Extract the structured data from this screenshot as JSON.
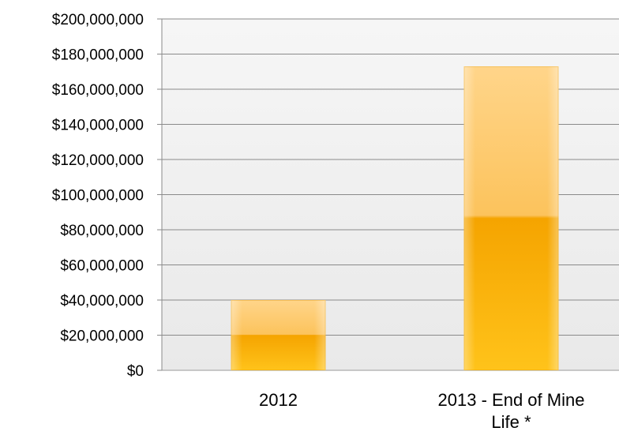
{
  "chart_data": {
    "type": "bar",
    "title": "",
    "xlabel": "",
    "ylabel": "",
    "categories": [
      [
        "2012"
      ],
      [
        "2013 - End of Mine",
        "Life *"
      ]
    ],
    "values": [
      40000000,
      173000000
    ],
    "ylim": [
      0,
      200000000
    ],
    "y_ticks": [
      {
        "value": 0,
        "label": "$0"
      },
      {
        "value": 20000000,
        "label": "$20,000,000"
      },
      {
        "value": 40000000,
        "label": "$40,000,000"
      },
      {
        "value": 60000000,
        "label": "$60,000,000"
      },
      {
        "value": 80000000,
        "label": "$80,000,000"
      },
      {
        "value": 100000000,
        "label": "$100,000,000"
      },
      {
        "value": 120000000,
        "label": "$120,000,000"
      },
      {
        "value": 140000000,
        "label": "$140,000,000"
      },
      {
        "value": 160000000,
        "label": "$160,000,000"
      },
      {
        "value": 180000000,
        "label": "$180,000,000"
      },
      {
        "value": 200000000,
        "label": "$200,000,000"
      }
    ],
    "grid": true,
    "colors": {
      "bar_light": "#ffd58a",
      "bar_dark": "#f6a800",
      "plot_background": "#f2f2f2",
      "gridline": "#8a8a8a"
    }
  }
}
